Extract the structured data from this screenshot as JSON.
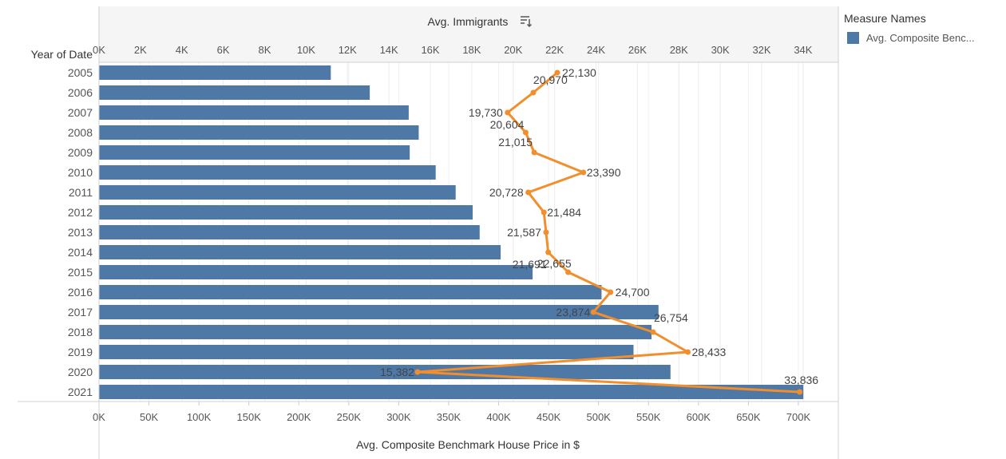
{
  "chart_data": {
    "type": "bar+line",
    "categories_axis_title": "Year of Date",
    "categories": [
      "2005",
      "2006",
      "2007",
      "2008",
      "2009",
      "2010",
      "2011",
      "2012",
      "2013",
      "2014",
      "2015",
      "2016",
      "2017",
      "2018",
      "2019",
      "2020",
      "2021"
    ],
    "bar_series": {
      "name": "Avg. Composite Benc...",
      "axis_title": "Avg. Composite Benchmark House Price in $",
      "values": [
        232000,
        271000,
        310000,
        320000,
        311000,
        337000,
        357000,
        374000,
        381000,
        402000,
        434000,
        503000,
        560000,
        553000,
        535000,
        572000,
        705000
      ],
      "xlim": [
        0,
        740000
      ],
      "ticks": [
        "0K",
        "50K",
        "100K",
        "150K",
        "200K",
        "250K",
        "300K",
        "350K",
        "400K",
        "450K",
        "500K",
        "550K",
        "600K",
        "650K",
        "700K"
      ],
      "color": "#4e79a7"
    },
    "line_series": {
      "name": "Avg. Immigrants",
      "axis_title": "Avg. Immigrants",
      "values": [
        22130,
        20970,
        19730,
        20604,
        21015,
        23390,
        20728,
        21484,
        21587,
        21691,
        22655,
        24700,
        23874,
        26754,
        28433,
        15382,
        33836
      ],
      "labels": [
        "22,130",
        "20,970",
        "19,730",
        "20,604",
        "21,015",
        "23,390",
        "20,728",
        "21,484",
        "21,587",
        "21,691",
        "22,655",
        "24,700",
        "23,874",
        "26,754",
        "28,433",
        "15,382",
        "33,836"
      ],
      "xlim": [
        0,
        35700
      ],
      "ticks": [
        "0K",
        "2K",
        "4K",
        "6K",
        "8K",
        "10K",
        "12K",
        "14K",
        "16K",
        "18K",
        "20K",
        "22K",
        "24K",
        "26K",
        "28K",
        "30K",
        "32K",
        "34K"
      ],
      "color": "#f28e2b"
    },
    "legend": {
      "title": "Measure Names",
      "placement": "right",
      "items": [
        {
          "label": "Avg. Composite Benc...",
          "color": "#4e79a7"
        }
      ]
    },
    "grid": true
  }
}
